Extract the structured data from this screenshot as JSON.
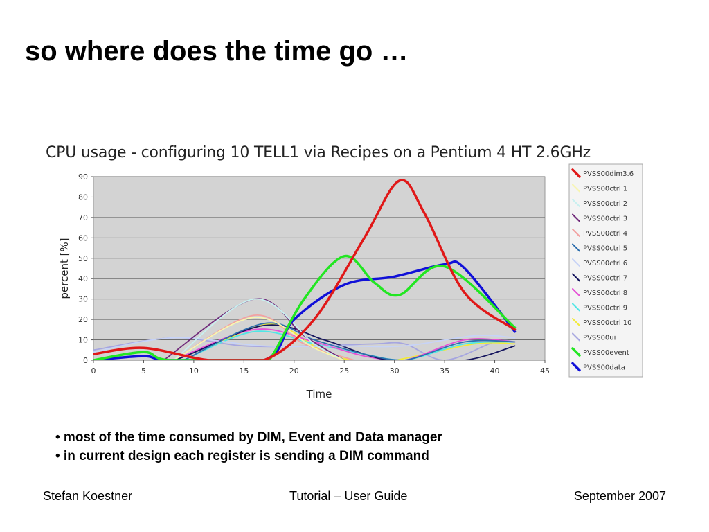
{
  "slide": {
    "title": "so where does the time go …",
    "bullets": [
      "• most of the time consumed by DIM, Event and Data manager",
      "• in current design each register is sending a DIM command"
    ],
    "footer": {
      "left": "Stefan Koestner",
      "center": "Tutorial – User Guide",
      "right": "September 2007"
    }
  },
  "chart_data": {
    "type": "line",
    "title": "CPU usage - configuring 10 TELL1 via Recipes on a Pentium 4 HT 2.6GHz",
    "xlabel": "Time",
    "ylabel": "percent [%]",
    "xlim": [
      0,
      45
    ],
    "ylim": [
      0,
      90
    ],
    "xticks": [
      0,
      5,
      10,
      15,
      20,
      25,
      30,
      35,
      40,
      45
    ],
    "yticks": [
      0,
      10,
      20,
      30,
      40,
      50,
      60,
      70,
      80,
      90
    ],
    "grid": "horizontal",
    "legend_position": "right",
    "plot_background": "#d3d3d3",
    "series": [
      {
        "name": "PVSS00dim3.6",
        "color": "#e01818",
        "points": [
          [
            0,
            3
          ],
          [
            5,
            6
          ],
          [
            11.5,
            0
          ],
          [
            17,
            0
          ],
          [
            22,
            20
          ],
          [
            27,
            60
          ],
          [
            30.5,
            88
          ],
          [
            33,
            72
          ],
          [
            37,
            33
          ],
          [
            42,
            15
          ]
        ]
      },
      {
        "name": "PVSS00ctrl 1",
        "color": "#f7f5b0",
        "points": [
          [
            8,
            0
          ],
          [
            16,
            21
          ],
          [
            22,
            6
          ],
          [
            25,
            0
          ]
        ]
      },
      {
        "name": "PVSS00ctrl 2",
        "color": "#c8f0f0",
        "points": [
          [
            8,
            0
          ],
          [
            16,
            30
          ],
          [
            22,
            8
          ],
          [
            25,
            0
          ]
        ]
      },
      {
        "name": "PVSS00ctrl 3",
        "color": "#702a7a",
        "points": [
          [
            7,
            0
          ],
          [
            16,
            30
          ],
          [
            21,
            12
          ],
          [
            25,
            0
          ]
        ]
      },
      {
        "name": "PVSS00ctrl 4",
        "color": "#f2a2a2",
        "points": [
          [
            8,
            0
          ],
          [
            16,
            22
          ],
          [
            21,
            8
          ],
          [
            26,
            0
          ]
        ]
      },
      {
        "name": "PVSS00ctrl 5",
        "color": "#2e6fad",
        "points": [
          [
            9,
            0
          ],
          [
            17,
            18
          ],
          [
            22,
            10
          ],
          [
            27,
            3
          ],
          [
            31,
            0
          ],
          [
            37,
            9
          ],
          [
            42,
            9
          ]
        ]
      },
      {
        "name": "PVSS00ctrl 6",
        "color": "#c7d3f7",
        "points": [
          [
            0,
            4
          ],
          [
            8,
            11
          ],
          [
            17,
            7
          ],
          [
            25,
            7
          ],
          [
            31,
            7
          ],
          [
            38,
            12
          ],
          [
            42,
            11
          ]
        ]
      },
      {
        "name": "PVSS00ctrl 7",
        "color": "#15155e",
        "points": [
          [
            0,
            0
          ],
          [
            5,
            2
          ],
          [
            8,
            0
          ],
          [
            17,
            17
          ],
          [
            23,
            10
          ],
          [
            27,
            3
          ],
          [
            30,
            0
          ],
          [
            37,
            0
          ],
          [
            42,
            7
          ]
        ]
      },
      {
        "name": "PVSS00ctrl 8",
        "color": "#e650d6",
        "points": [
          [
            8,
            0
          ],
          [
            16,
            15
          ],
          [
            22,
            9
          ],
          [
            27,
            2
          ],
          [
            31,
            0
          ],
          [
            37,
            10
          ],
          [
            42,
            9
          ]
        ]
      },
      {
        "name": "PVSS00ctrl 9",
        "color": "#50e6e6",
        "points": [
          [
            9,
            0
          ],
          [
            16,
            14
          ],
          [
            22,
            8
          ],
          [
            27,
            3
          ],
          [
            31,
            0
          ],
          [
            37,
            8
          ],
          [
            42,
            9
          ]
        ]
      },
      {
        "name": "PVSS00ctrl 10",
        "color": "#f2ea3a",
        "points": [
          [
            9,
            0
          ],
          [
            16,
            16
          ],
          [
            19,
            16
          ],
          [
            23,
            4
          ],
          [
            26,
            0
          ],
          [
            30,
            0
          ],
          [
            38,
            8
          ],
          [
            42,
            8
          ]
        ]
      },
      {
        "name": "PVSS00ui",
        "color": "#a6a6e0",
        "points": [
          [
            0,
            5
          ],
          [
            8,
            11
          ],
          [
            15,
            7
          ],
          [
            22,
            7
          ],
          [
            28,
            8
          ],
          [
            31,
            8
          ],
          [
            35,
            0
          ],
          [
            40,
            9
          ],
          [
            42,
            9
          ]
        ]
      },
      {
        "name": "PVSS00event",
        "color": "#22e622",
        "points": [
          [
            0,
            0
          ],
          [
            5,
            4
          ],
          [
            7.5,
            0
          ],
          [
            16,
            0
          ],
          [
            17.5,
            0
          ],
          [
            21,
            30
          ],
          [
            25,
            51
          ],
          [
            28,
            38
          ],
          [
            30.5,
            32
          ],
          [
            35,
            46
          ],
          [
            42,
            16
          ]
        ]
      },
      {
        "name": "PVSS00data",
        "color": "#1010d8",
        "points": [
          [
            0,
            0
          ],
          [
            5,
            2
          ],
          [
            7.5,
            0
          ],
          [
            17,
            0
          ],
          [
            20,
            20
          ],
          [
            25,
            37
          ],
          [
            30,
            41
          ],
          [
            35,
            47
          ],
          [
            37,
            45
          ],
          [
            42,
            14
          ]
        ]
      }
    ]
  }
}
